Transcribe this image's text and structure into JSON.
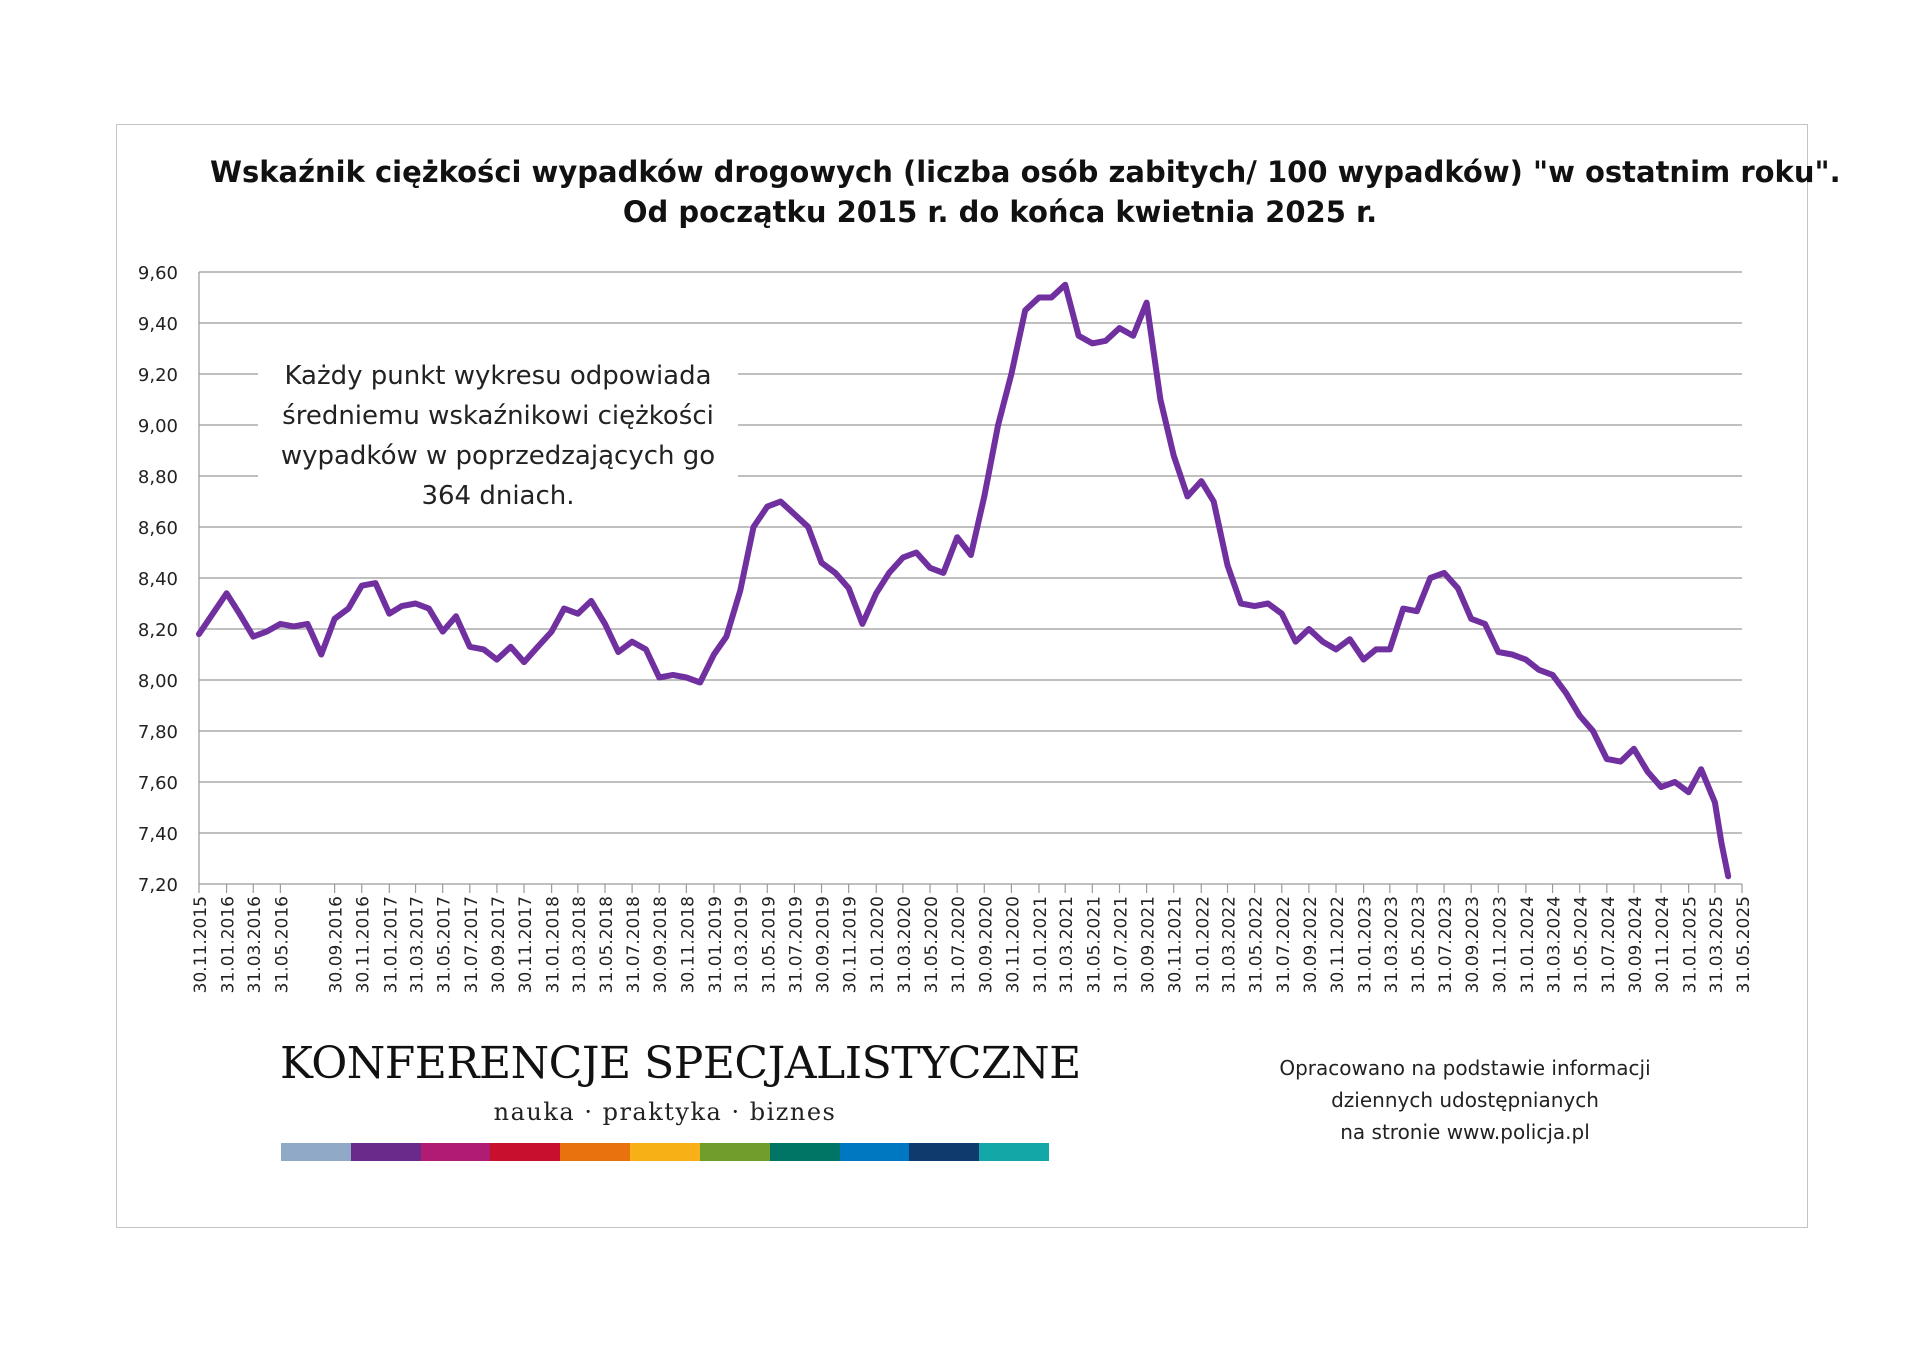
{
  "title_lines": [
    "Wskaźnik ciężkości wypadków drogowych (liczba osób zabitych/ 100 wypadków) \"w ostatnim roku\".",
    "Od początku 2015 r. do końca kwietnia 2025 r."
  ],
  "annotation": "Każdy punkt wykresu odpowiada średniemu wskaźnikowi ciężkości wypadków w poprzedzających go 364 dniach.",
  "logo": {
    "title": "KONFERENCJE SPECJALISTYCZNE",
    "subtitle": "nauka · praktyka · biznes",
    "bar_colors": [
      "#8fa9c6",
      "#6a2a8c",
      "#b01b74",
      "#c8102e",
      "#e8730e",
      "#f7b116",
      "#6f9e2a",
      "#007566",
      "#0078c1",
      "#0e3a6e",
      "#13a7a8"
    ]
  },
  "source_lines": [
    "Opracowano na podstawie informacji",
    "dziennych udostępnianych",
    "na stronie www.policja.pl"
  ],
  "chart_data": {
    "type": "line",
    "title": "Wskaźnik ciężkości wypadków drogowych (liczba osób zabitych/ 100 wypadków) \"w ostatnim roku\". Od początku 2015 r. do końca kwietnia 2025 r.",
    "xlabel": "",
    "ylabel": "",
    "ylim": [
      7.2,
      9.6
    ],
    "y_ticks": [
      "7,20",
      "7,40",
      "7,60",
      "7,80",
      "8,00",
      "8,20",
      "8,40",
      "8,60",
      "8,80",
      "9,00",
      "9,20",
      "9,40",
      "9,60"
    ],
    "x_ticks": [
      "30.11.2015",
      "31.01.2016",
      "31.03.2016",
      "31.05.2016",
      "30.09.2016",
      "30.11.2016",
      "31.01.2017",
      "31.03.2017",
      "31.05.2017",
      "31.07.2017",
      "30.09.2017",
      "30.11.2017",
      "31.01.2018",
      "31.03.2018",
      "31.05.2018",
      "31.07.2018",
      "30.09.2018",
      "30.11.2018",
      "31.01.2019",
      "31.03.2019",
      "31.05.2019",
      "31.07.2019",
      "30.09.2019",
      "30.11.2019",
      "31.01.2020",
      "31.03.2020",
      "31.05.2020",
      "31.07.2020",
      "30.09.2020",
      "30.11.2020",
      "31.01.2021",
      "31.03.2021",
      "31.05.2021",
      "31.07.2021",
      "30.09.2021",
      "30.11.2021",
      "31.01.2022",
      "31.03.2022",
      "31.05.2022",
      "31.07.2022",
      "30.09.2022",
      "30.11.2022",
      "31.01.2023",
      "31.03.2023",
      "31.05.2023",
      "31.07.2023",
      "30.09.2023",
      "30.11.2023",
      "31.01.2024",
      "31.03.2024",
      "31.05.2024",
      "31.07.2024",
      "30.09.2024",
      "30.11.2024",
      "31.01.2025",
      "31.03.2025",
      "31.05.2025"
    ],
    "grid": true,
    "legend": "none",
    "series": [
      {
        "color": "#7030a0",
        "x": [
          "30.11.2015",
          "31.12.2015",
          "31.01.2016",
          "29.02.2016",
          "31.03.2016",
          "30.04.2016",
          "31.05.2016",
          "30.06.2016",
          "31.07.2016",
          "31.08.2016",
          "30.09.2016",
          "31.10.2016",
          "30.11.2016",
          "31.12.2016",
          "31.01.2017",
          "28.02.2017",
          "31.03.2017",
          "30.04.2017",
          "31.05.2017",
          "30.06.2017",
          "31.07.2017",
          "31.08.2017",
          "30.09.2017",
          "31.10.2017",
          "30.11.2017",
          "31.12.2017",
          "31.01.2018",
          "28.02.2018",
          "31.03.2018",
          "30.04.2018",
          "31.05.2018",
          "30.06.2018",
          "31.07.2018",
          "31.08.2018",
          "30.09.2018",
          "31.10.2018",
          "30.11.2018",
          "31.12.2018",
          "31.01.2019",
          "28.02.2019",
          "31.03.2019",
          "30.04.2019",
          "31.05.2019",
          "30.06.2019",
          "31.07.2019",
          "31.08.2019",
          "30.09.2019",
          "31.10.2019",
          "30.11.2019",
          "31.12.2019",
          "31.01.2020",
          "29.02.2020",
          "31.03.2020",
          "30.04.2020",
          "31.05.2020",
          "30.06.2020",
          "31.07.2020",
          "31.08.2020",
          "30.09.2020",
          "31.10.2020",
          "30.11.2020",
          "31.12.2020",
          "31.01.2021",
          "28.02.2021",
          "31.03.2021",
          "30.04.2021",
          "31.05.2021",
          "30.06.2021",
          "31.07.2021",
          "31.08.2021",
          "30.09.2021",
          "31.10.2021",
          "30.11.2021",
          "31.12.2021",
          "31.01.2022",
          "28.02.2022",
          "31.03.2022",
          "30.04.2022",
          "31.05.2022",
          "30.06.2022",
          "31.07.2022",
          "31.08.2022",
          "30.09.2022",
          "31.10.2022",
          "30.11.2022",
          "31.12.2022",
          "31.01.2023",
          "28.02.2023",
          "31.03.2023",
          "30.04.2023",
          "31.05.2023",
          "30.06.2023",
          "31.07.2023",
          "31.08.2023",
          "30.09.2023",
          "31.10.2023",
          "30.11.2023",
          "31.12.2023",
          "31.01.2024",
          "29.02.2024",
          "31.03.2024",
          "30.04.2024",
          "31.05.2024",
          "30.06.2024",
          "31.07.2024",
          "31.08.2024",
          "30.09.2024",
          "31.10.2024",
          "30.11.2024",
          "31.12.2024",
          "31.01.2025",
          "28.02.2025",
          "31.03.2025",
          "15.04.2025",
          "30.04.2025"
        ],
        "values": [
          8.18,
          8.26,
          8.34,
          8.26,
          8.17,
          8.19,
          8.22,
          8.21,
          8.22,
          8.1,
          8.24,
          8.28,
          8.37,
          8.38,
          8.26,
          8.29,
          8.3,
          8.28,
          8.19,
          8.25,
          8.13,
          8.12,
          8.08,
          8.13,
          8.07,
          8.13,
          8.19,
          8.28,
          8.26,
          8.31,
          8.22,
          8.11,
          8.15,
          8.12,
          8.01,
          8.02,
          8.01,
          7.99,
          8.1,
          8.17,
          8.35,
          8.6,
          8.68,
          8.7,
          8.65,
          8.6,
          8.46,
          8.42,
          8.36,
          8.22,
          8.34,
          8.42,
          8.48,
          8.5,
          8.44,
          8.42,
          8.56,
          8.49,
          8.72,
          9.0,
          9.2,
          9.45,
          9.5,
          9.5,
          9.55,
          9.35,
          9.32,
          9.33,
          9.38,
          9.35,
          9.48,
          9.1,
          8.88,
          8.72,
          8.78,
          8.7,
          8.45,
          8.3,
          8.29,
          8.3,
          8.26,
          8.15,
          8.2,
          8.15,
          8.12,
          8.16,
          8.08,
          8.12,
          8.12,
          8.28,
          8.27,
          8.4,
          8.42,
          8.36,
          8.24,
          8.22,
          8.11,
          8.1,
          8.08,
          8.04,
          8.02,
          7.95,
          7.86,
          7.8,
          7.69,
          7.68,
          7.73,
          7.64,
          7.58,
          7.6,
          7.56,
          7.65,
          7.52,
          7.36,
          7.23
        ]
      }
    ]
  }
}
